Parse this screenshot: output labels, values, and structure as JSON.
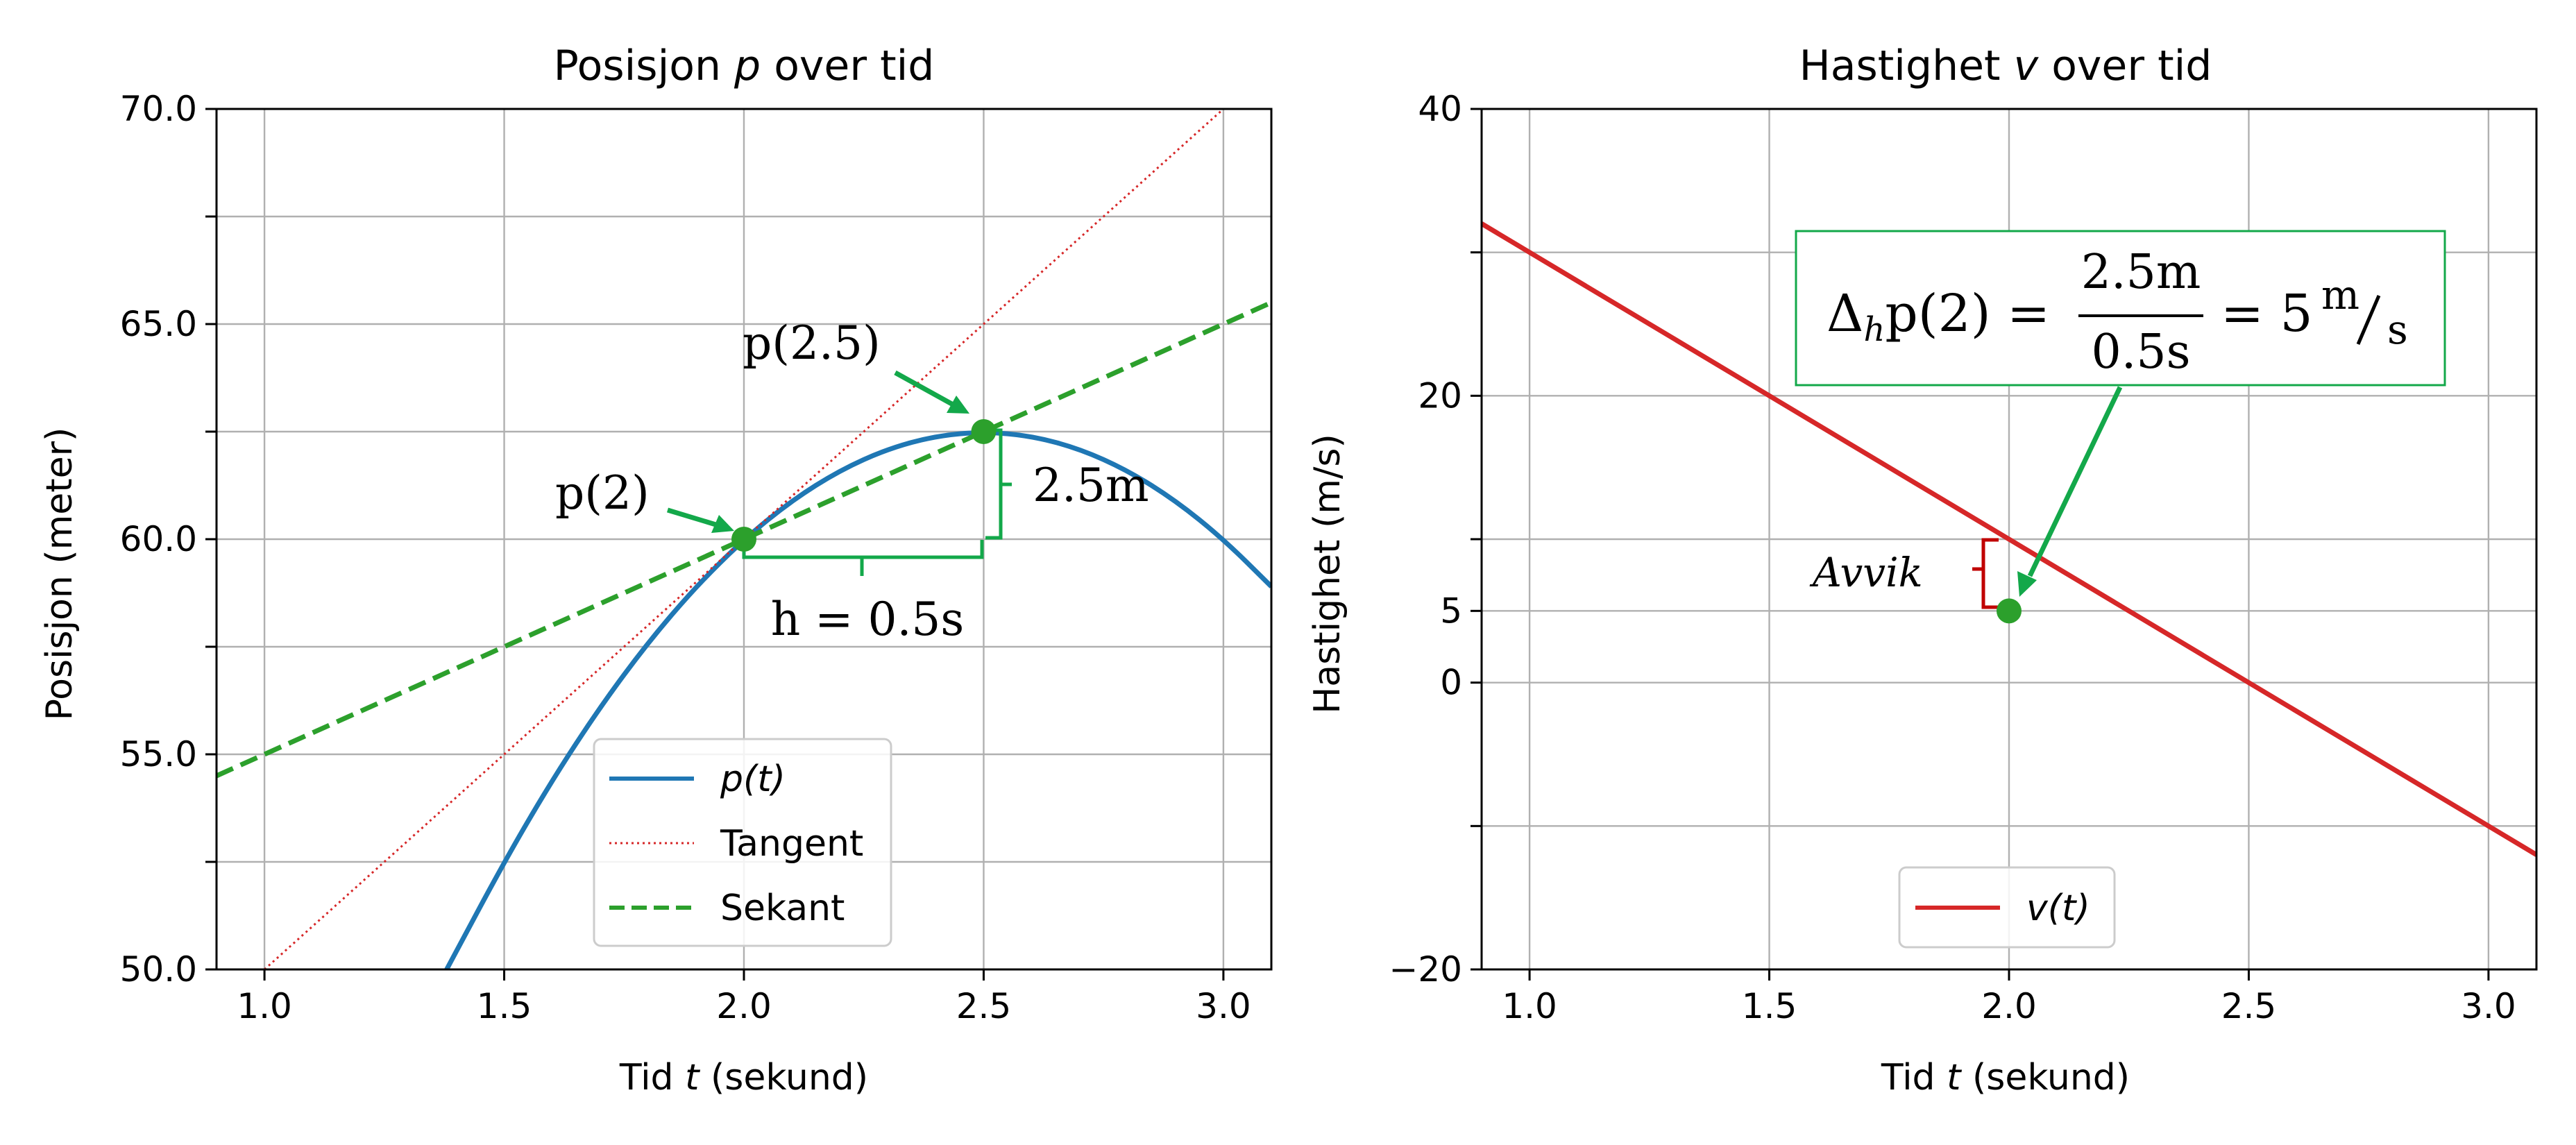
{
  "chart_data": [
    {
      "type": "line",
      "title": "Posisjon p over tid",
      "title_parts": {
        "before": "Posisjon ",
        "var": "p",
        "after": " over tid"
      },
      "xlabel": "Tid t (sekund)",
      "xlabel_parts": {
        "before": "Tid ",
        "var": "t",
        "after": " (sekund)"
      },
      "ylabel": "Posisjon (meter)",
      "xlim": [
        0.9,
        3.1
      ],
      "ylim": [
        50,
        70
      ],
      "grid": true,
      "xticks": [
        1.0,
        1.5,
        2.0,
        2.5,
        3.0
      ],
      "xtick_labels": [
        "1.0",
        "1.5",
        "2.0",
        "2.5",
        "3.0"
      ],
      "yticks": [
        50,
        52.5,
        55,
        57.5,
        60,
        62.5,
        65,
        67.5,
        70
      ],
      "ytick_labels": [
        "50.0",
        "",
        "55.0",
        "",
        "60.0",
        "",
        "65.0",
        "",
        "70.0"
      ],
      "series": [
        {
          "name": "p(t)",
          "style": "solid",
          "color": "#1f77b4",
          "points": [
            [
              1.38,
              50.0
            ],
            [
              1.5,
              52.5
            ],
            [
              1.6,
              54.4
            ],
            [
              1.7,
              56.1
            ],
            [
              1.8,
              57.6
            ],
            [
              1.9,
              58.9
            ],
            [
              2.0,
              60.0
            ],
            [
              2.1,
              60.9
            ],
            [
              2.2,
              61.6
            ],
            [
              2.3,
              62.1
            ],
            [
              2.4,
              62.4
            ],
            [
              2.5,
              62.5
            ],
            [
              2.6,
              62.4
            ],
            [
              2.7,
              62.1
            ],
            [
              2.8,
              61.6
            ],
            [
              2.9,
              60.9
            ],
            [
              3.0,
              60.0
            ],
            [
              3.1,
              58.9
            ]
          ]
        },
        {
          "name": "Tangent",
          "style": "dotted",
          "color": "#d62728",
          "points": [
            [
              1.0,
              50.0
            ],
            [
              3.0,
              70.0
            ]
          ]
        },
        {
          "name": "Sekant",
          "style": "dashed",
          "color": "#2ca02c",
          "points": [
            [
              0.9,
              54.5
            ],
            [
              3.1,
              65.5
            ]
          ]
        }
      ],
      "markers": [
        {
          "label": "p(2)",
          "x": 2.0,
          "y": 60.0
        },
        {
          "label": "p(2.5)",
          "x": 2.5,
          "y": 62.5
        }
      ],
      "annotations": {
        "h_label": "h = 0.5s",
        "dp_label": "2.5m"
      },
      "legend": {
        "placement": "lower-center",
        "entries": [
          "p(t)",
          "Tangent",
          "Sekant"
        ]
      }
    },
    {
      "type": "line",
      "title": "Hastighet v over tid",
      "title_parts": {
        "before": "Hastighet ",
        "var": "v",
        "after": " over tid"
      },
      "xlabel": "Tid t (sekund)",
      "xlabel_parts": {
        "before": "Tid ",
        "var": "t",
        "after": " (sekund)"
      },
      "ylabel": "Hastighet (m/s)",
      "xlim": [
        0.9,
        3.1
      ],
      "ylim": [
        -20,
        40
      ],
      "grid": true,
      "xticks": [
        1.0,
        1.5,
        2.0,
        2.5,
        3.0
      ],
      "xtick_labels": [
        "1.0",
        "1.5",
        "2.0",
        "2.5",
        "3.0"
      ],
      "yticks": [
        -20,
        -10,
        0,
        5,
        10,
        20,
        30,
        40
      ],
      "ytick_labels": [
        "−20",
        "",
        "0",
        "5",
        "",
        "20",
        "",
        "40"
      ],
      "series": [
        {
          "name": "v(t)",
          "style": "solid",
          "color": "#d62728",
          "points": [
            [
              0.9,
              32.0
            ],
            [
              3.1,
              -12.0
            ]
          ]
        }
      ],
      "markers": [
        {
          "label": "",
          "x": 2.0,
          "y": 5.0
        }
      ],
      "annotations": {
        "avvik_label": "Avvik",
        "formula": {
          "lhs": "Δ",
          "lhs_sub": "h",
          "lhs_rest": "p(2) =",
          "num": "2.5m",
          "den": "0.5s",
          "rhs": "= 5",
          "unit_num": "m",
          "unit_den": "s"
        }
      },
      "legend": {
        "placement": "lower-center",
        "entries": [
          "v(t)"
        ]
      }
    }
  ],
  "colors": {
    "blue": "#1f77b4",
    "red": "#d62728",
    "green": "#2ca02c",
    "annot_green": "#13a84a",
    "annot_red": "#c00000"
  }
}
